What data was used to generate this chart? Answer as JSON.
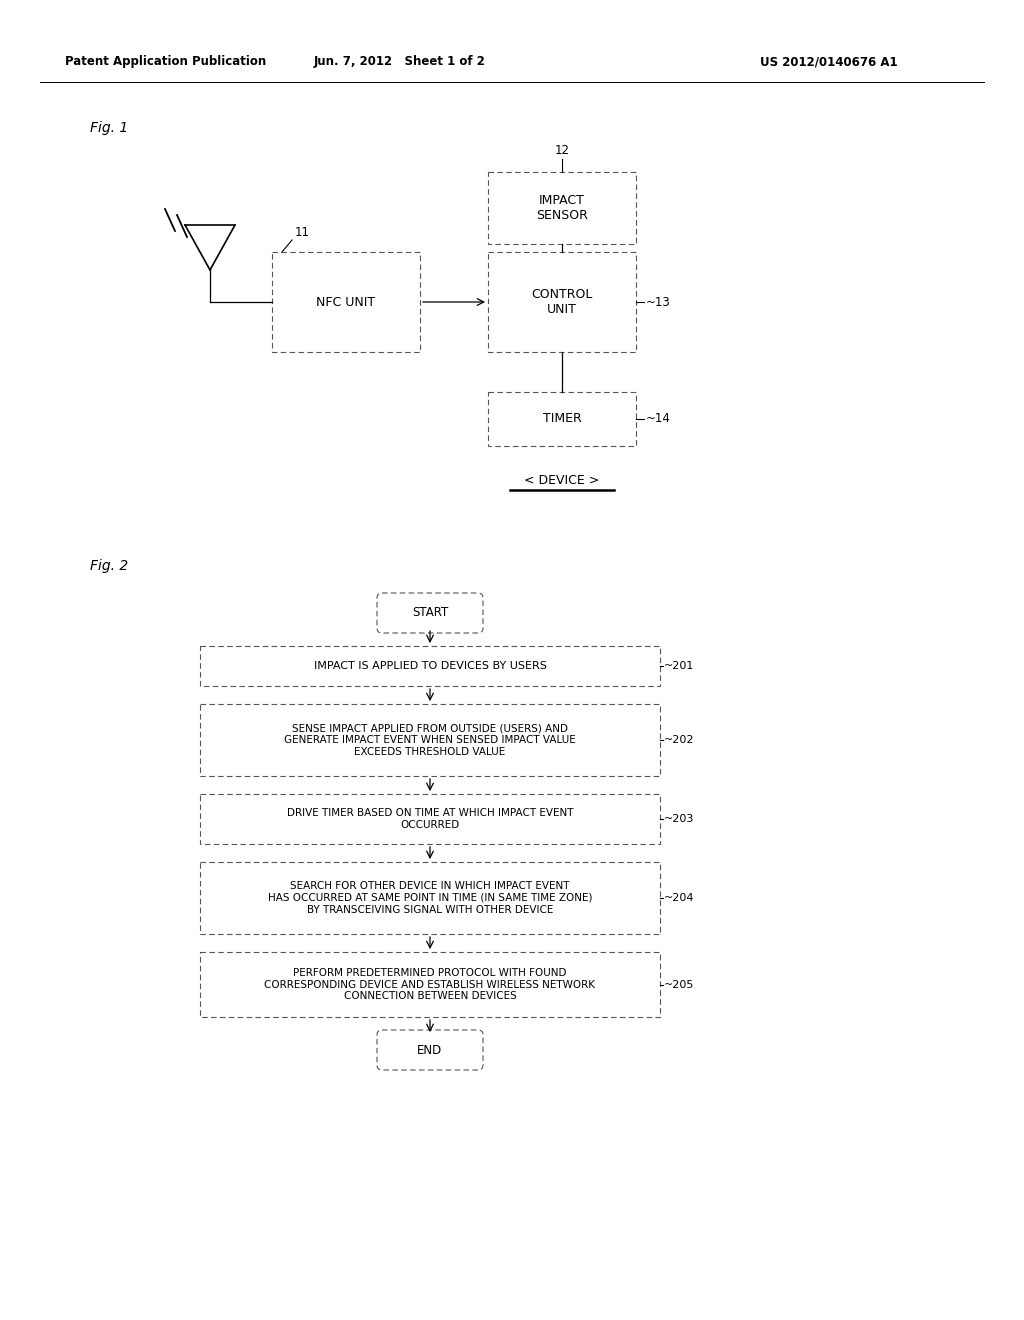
{
  "bg_color": "#ffffff",
  "header_left": "Patent Application Publication",
  "header_center": "Jun. 7, 2012   Sheet 1 of 2",
  "header_right": "US 2012/0140676 A1",
  "fig1_label": "Fig. 1",
  "fig2_label": "Fig. 2",
  "device_caption": "< DEVICE >",
  "nfc_label": "NFC UNIT",
  "control_label": "CONTROL\nUNIT",
  "impact_label": "IMPACT\nSENSOR",
  "timer_label": "TIMER",
  "ref_11": "11",
  "ref_12": "12",
  "ref_13": "~13",
  "ref_14": "~14",
  "start_text": "START",
  "end_text": "END",
  "box201_text": "IMPACT IS APPLIED TO DEVICES BY USERS",
  "box201_ref": "~201",
  "box202_text": "SENSE IMPACT APPLIED FROM OUTSIDE (USERS) AND\nGENERATE IMPACT EVENT WHEN SENSED IMPACT VALUE\nEXCEEDS THRESHOLD VALUE",
  "box202_ref": "~202",
  "box203_text": "DRIVE TIMER BASED ON TIME AT WHICH IMPACT EVENT\nOCCURRED",
  "box203_ref": "~203",
  "box204_text": "SEARCH FOR OTHER DEVICE IN WHICH IMPACT EVENT\nHAS OCCURRED AT SAME POINT IN TIME (IN SAME TIME ZONE)\nBY TRANSCEIVING SIGNAL WITH OTHER DEVICE",
  "box204_ref": "~204",
  "box205_text": "PERFORM PREDETERMINED PROTOCOL WITH FOUND\nCORRESPONDING DEVICE AND ESTABLISH WIRELESS NETWORK\nCONNECTION BETWEEN DEVICES",
  "box205_ref": "~205"
}
